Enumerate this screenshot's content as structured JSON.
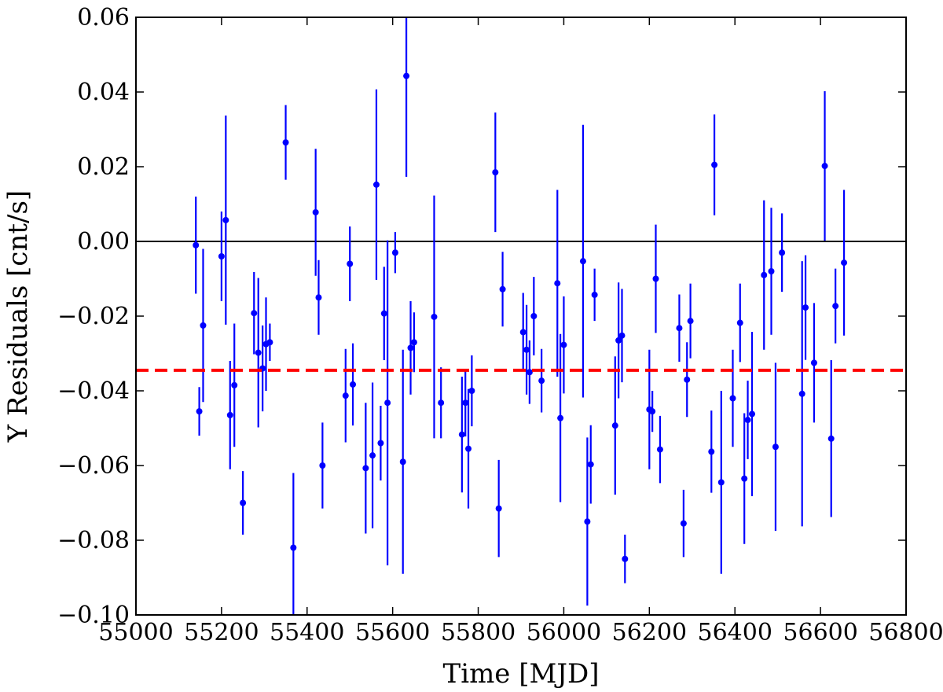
{
  "chart_data": {
    "type": "scatter",
    "title": "",
    "xlabel": "Time [MJD]",
    "ylabel": "Y Residuals [cnt/s]",
    "xlim": [
      55000,
      56800
    ],
    "ylim": [
      -0.1,
      0.06
    ],
    "grid": false,
    "x_ticks": [
      55000,
      55200,
      55400,
      55600,
      55800,
      56000,
      56200,
      56400,
      56600,
      56800
    ],
    "x_tick_labels": [
      "55000",
      "55200",
      "55400",
      "55600",
      "55800",
      "56000",
      "56200",
      "56400",
      "56600",
      "56800"
    ],
    "y_ticks": [
      -0.1,
      -0.08,
      -0.06,
      -0.04,
      -0.02,
      0.0,
      0.02,
      0.04,
      0.06
    ],
    "y_tick_labels": [
      "−0.10",
      "−0.08",
      "−0.06",
      "−0.04",
      "−0.02",
      "0.00",
      "0.02",
      "0.04",
      "0.06"
    ],
    "zero_line": {
      "y": 0.0,
      "color": "#000000"
    },
    "mean_line": {
      "y": -0.0345,
      "color": "#ff0000",
      "style": "dashed"
    },
    "series": [
      {
        "marker_color": "#0000ff",
        "points": [
          {
            "x": 55140,
            "y": -0.001,
            "err": 0.013
          },
          {
            "x": 55148,
            "y": -0.0455,
            "err": 0.0065
          },
          {
            "x": 55157,
            "y": -0.0225,
            "err": 0.0205
          },
          {
            "x": 55200,
            "y": -0.004,
            "err": 0.012
          },
          {
            "x": 55210,
            "y": 0.0057,
            "err": 0.028
          },
          {
            "x": 55220,
            "y": -0.0465,
            "err": 0.0145
          },
          {
            "x": 55230,
            "y": -0.0385,
            "err": 0.0165
          },
          {
            "x": 55250,
            "y": -0.07,
            "err": 0.0085
          },
          {
            "x": 55276,
            "y": -0.0192,
            "err": 0.011
          },
          {
            "x": 55286,
            "y": -0.0298,
            "err": 0.02
          },
          {
            "x": 55296,
            "y": -0.034,
            "err": 0.0115
          },
          {
            "x": 55304,
            "y": -0.0275,
            "err": 0.0125
          },
          {
            "x": 55313,
            "y": -0.027,
            "err": 0.005
          },
          {
            "x": 55350,
            "y": 0.0265,
            "err": 0.01
          },
          {
            "x": 55368,
            "y": -0.082,
            "err": 0.02
          },
          {
            "x": 55420,
            "y": 0.0078,
            "err": 0.017
          },
          {
            "x": 55427,
            "y": -0.015,
            "err": 0.01
          },
          {
            "x": 55436,
            "y": -0.06,
            "err": 0.0115
          },
          {
            "x": 55490,
            "y": -0.0413,
            "err": 0.0125
          },
          {
            "x": 55500,
            "y": -0.006,
            "err": 0.01
          },
          {
            "x": 55507,
            "y": -0.0383,
            "err": 0.011
          },
          {
            "x": 55537,
            "y": -0.0607,
            "err": 0.0175
          },
          {
            "x": 55553,
            "y": -0.0573,
            "err": 0.0195
          },
          {
            "x": 55562,
            "y": 0.0152,
            "err": 0.0255
          },
          {
            "x": 55572,
            "y": -0.054,
            "err": 0.01
          },
          {
            "x": 55580,
            "y": -0.0193,
            "err": 0.0125
          },
          {
            "x": 55588,
            "y": -0.0432,
            "err": 0.0435
          },
          {
            "x": 55606,
            "y": -0.003,
            "err": 0.0055
          },
          {
            "x": 55624,
            "y": -0.059,
            "err": 0.03
          },
          {
            "x": 55632,
            "y": 0.0443,
            "err": 0.027
          },
          {
            "x": 55642,
            "y": -0.0285,
            "err": 0.0125
          },
          {
            "x": 55650,
            "y": -0.027,
            "err": 0.008
          },
          {
            "x": 55697,
            "y": -0.0202,
            "err": 0.0325
          },
          {
            "x": 55713,
            "y": -0.0432,
            "err": 0.0095
          },
          {
            "x": 55762,
            "y": -0.0517,
            "err": 0.0155
          },
          {
            "x": 55770,
            "y": -0.0432,
            "err": 0.009
          },
          {
            "x": 55777,
            "y": -0.0555,
            "err": 0.016
          },
          {
            "x": 55785,
            "y": -0.04,
            "err": 0.0095
          },
          {
            "x": 55840,
            "y": 0.0185,
            "err": 0.016
          },
          {
            "x": 55848,
            "y": -0.0715,
            "err": 0.013
          },
          {
            "x": 55857,
            "y": -0.0128,
            "err": 0.01
          },
          {
            "x": 55905,
            "y": -0.0243,
            "err": 0.0105
          },
          {
            "x": 55913,
            "y": -0.029,
            "err": 0.012
          },
          {
            "x": 55920,
            "y": -0.035,
            "err": 0.0085
          },
          {
            "x": 55930,
            "y": -0.02,
            "err": 0.0105
          },
          {
            "x": 55948,
            "y": -0.0373,
            "err": 0.0085
          },
          {
            "x": 55985,
            "y": -0.0112,
            "err": 0.025
          },
          {
            "x": 55992,
            "y": -0.0473,
            "err": 0.0225
          },
          {
            "x": 56000,
            "y": -0.0277,
            "err": 0.013
          },
          {
            "x": 56045,
            "y": -0.0053,
            "err": 0.0365
          },
          {
            "x": 56055,
            "y": -0.075,
            "err": 0.0225
          },
          {
            "x": 56063,
            "y": -0.0597,
            "err": 0.0105
          },
          {
            "x": 56072,
            "y": -0.0143,
            "err": 0.007
          },
          {
            "x": 56120,
            "y": -0.0493,
            "err": 0.0185
          },
          {
            "x": 56128,
            "y": -0.0265,
            "err": 0.0155
          },
          {
            "x": 56136,
            "y": -0.0252,
            "err": 0.0125
          },
          {
            "x": 56143,
            "y": -0.085,
            "err": 0.0065
          },
          {
            "x": 56200,
            "y": -0.045,
            "err": 0.016
          },
          {
            "x": 56207,
            "y": -0.0455,
            "err": 0.0055
          },
          {
            "x": 56215,
            "y": -0.01,
            "err": 0.0145
          },
          {
            "x": 56225,
            "y": -0.0557,
            "err": 0.009
          },
          {
            "x": 56270,
            "y": -0.0232,
            "err": 0.009
          },
          {
            "x": 56280,
            "y": -0.0755,
            "err": 0.009
          },
          {
            "x": 56288,
            "y": -0.037,
            "err": 0.01
          },
          {
            "x": 56296,
            "y": -0.0213,
            "err": 0.01
          },
          {
            "x": 56345,
            "y": -0.0563,
            "err": 0.011
          },
          {
            "x": 56352,
            "y": 0.0205,
            "err": 0.0135
          },
          {
            "x": 56368,
            "y": -0.0645,
            "err": 0.0245
          },
          {
            "x": 56395,
            "y": -0.042,
            "err": 0.013
          },
          {
            "x": 56412,
            "y": -0.0218,
            "err": 0.0105
          },
          {
            "x": 56422,
            "y": -0.0635,
            "err": 0.0175
          },
          {
            "x": 56430,
            "y": -0.0478,
            "err": 0.0105
          },
          {
            "x": 56440,
            "y": -0.0462,
            "err": 0.022
          },
          {
            "x": 56468,
            "y": -0.009,
            "err": 0.02
          },
          {
            "x": 56485,
            "y": -0.008,
            "err": 0.017
          },
          {
            "x": 56495,
            "y": -0.055,
            "err": 0.0225
          },
          {
            "x": 56510,
            "y": -0.003,
            "err": 0.0105
          },
          {
            "x": 56557,
            "y": -0.0408,
            "err": 0.0355
          },
          {
            "x": 56565,
            "y": -0.0177,
            "err": 0.014
          },
          {
            "x": 56585,
            "y": -0.0325,
            "err": 0.016
          },
          {
            "x": 56610,
            "y": 0.0202,
            "err": 0.02
          },
          {
            "x": 56625,
            "y": -0.0528,
            "err": 0.021
          },
          {
            "x": 56635,
            "y": -0.0173,
            "err": 0.01
          },
          {
            "x": 56655,
            "y": -0.0057,
            "err": 0.0195
          }
        ]
      }
    ]
  }
}
